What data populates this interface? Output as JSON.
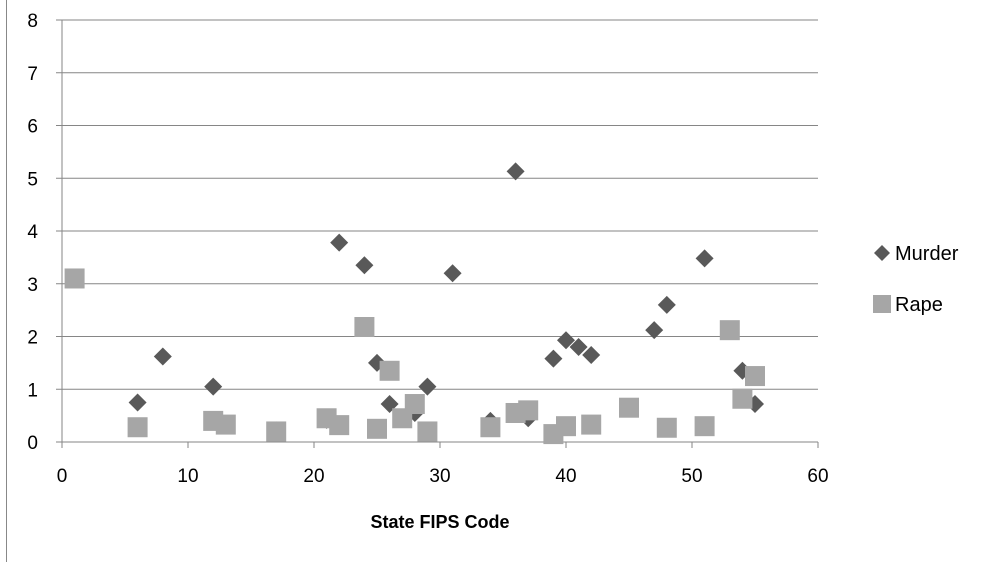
{
  "chart_data": {
    "type": "scatter",
    "title": "",
    "xlabel": "State FIPS Code",
    "ylabel": "",
    "xlim": [
      0,
      60
    ],
    "ylim": [
      0,
      8
    ],
    "x_ticks": [
      0,
      10,
      20,
      30,
      40,
      50,
      60
    ],
    "y_ticks": [
      0,
      1,
      2,
      3,
      4,
      5,
      6,
      7,
      8
    ],
    "grid": true,
    "legend_position": "right",
    "series": [
      {
        "name": "Murder",
        "marker": "diamond",
        "color": "#595959",
        "points": [
          [
            1,
            3.1
          ],
          [
            6,
            0.75
          ],
          [
            8,
            1.62
          ],
          [
            12,
            1.05
          ],
          [
            17,
            0.22
          ],
          [
            21,
            0.42
          ],
          [
            22,
            3.78
          ],
          [
            24,
            3.35
          ],
          [
            25,
            1.5
          ],
          [
            26,
            0.72
          ],
          [
            28,
            0.55
          ],
          [
            29,
            1.05
          ],
          [
            31,
            3.2
          ],
          [
            34,
            0.4
          ],
          [
            36,
            5.13
          ],
          [
            37,
            0.45
          ],
          [
            39,
            1.58
          ],
          [
            40,
            1.93
          ],
          [
            41,
            1.8
          ],
          [
            42,
            1.65
          ],
          [
            47,
            2.12
          ],
          [
            48,
            2.6
          ],
          [
            51,
            3.48
          ],
          [
            54,
            1.35
          ],
          [
            55,
            0.72
          ]
        ]
      },
      {
        "name": "Rape",
        "marker": "square",
        "color": "#a6a6a6",
        "points": [
          [
            1,
            3.1
          ],
          [
            6,
            0.28
          ],
          [
            12,
            0.4
          ],
          [
            13,
            0.33
          ],
          [
            17,
            0.2
          ],
          [
            21,
            0.45
          ],
          [
            22,
            0.32
          ],
          [
            24,
            2.18
          ],
          [
            25,
            0.25
          ],
          [
            26,
            1.35
          ],
          [
            27,
            0.45
          ],
          [
            28,
            0.72
          ],
          [
            29,
            0.2
          ],
          [
            34,
            0.28
          ],
          [
            36,
            0.55
          ],
          [
            37,
            0.6
          ],
          [
            39,
            0.15
          ],
          [
            40,
            0.3
          ],
          [
            42,
            0.33
          ],
          [
            45,
            0.65
          ],
          [
            48,
            0.27
          ],
          [
            51,
            0.3
          ],
          [
            53,
            2.12
          ],
          [
            54,
            0.82
          ],
          [
            55,
            1.25
          ]
        ]
      }
    ]
  }
}
